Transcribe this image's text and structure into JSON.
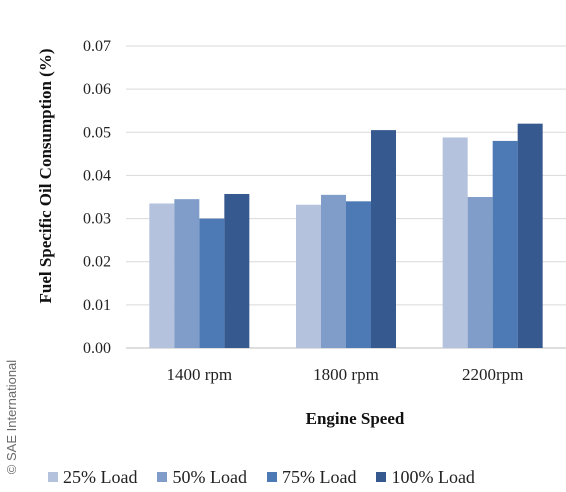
{
  "chart_data": {
    "type": "bar",
    "title": "",
    "xlabel": "Engine Speed",
    "ylabel": "Fuel Specific Oil Consumption (%)",
    "categories": [
      "1400 rpm",
      "1800 rpm",
      "2200rpm"
    ],
    "series": [
      {
        "name": "25% Load",
        "color": "#b4c2dd",
        "values": [
          0.0335,
          0.0332,
          0.0488
        ]
      },
      {
        "name": "50% Load",
        "color": "#7f9dc8",
        "values": [
          0.0345,
          0.0355,
          0.035
        ]
      },
      {
        "name": "75% Load",
        "color": "#4d7ab5",
        "values": [
          0.03,
          0.034,
          0.048
        ]
      },
      {
        "name": "100% Load",
        "color": "#36598f",
        "values": [
          0.0357,
          0.0505,
          0.052
        ]
      }
    ],
    "yticks": [
      "0.00",
      "0.01",
      "0.02",
      "0.03",
      "0.04",
      "0.05",
      "0.06",
      "0.07"
    ],
    "ylim": [
      0,
      0.07
    ],
    "grid": true,
    "legend_position": "bottom"
  },
  "watermark": "© SAE International"
}
